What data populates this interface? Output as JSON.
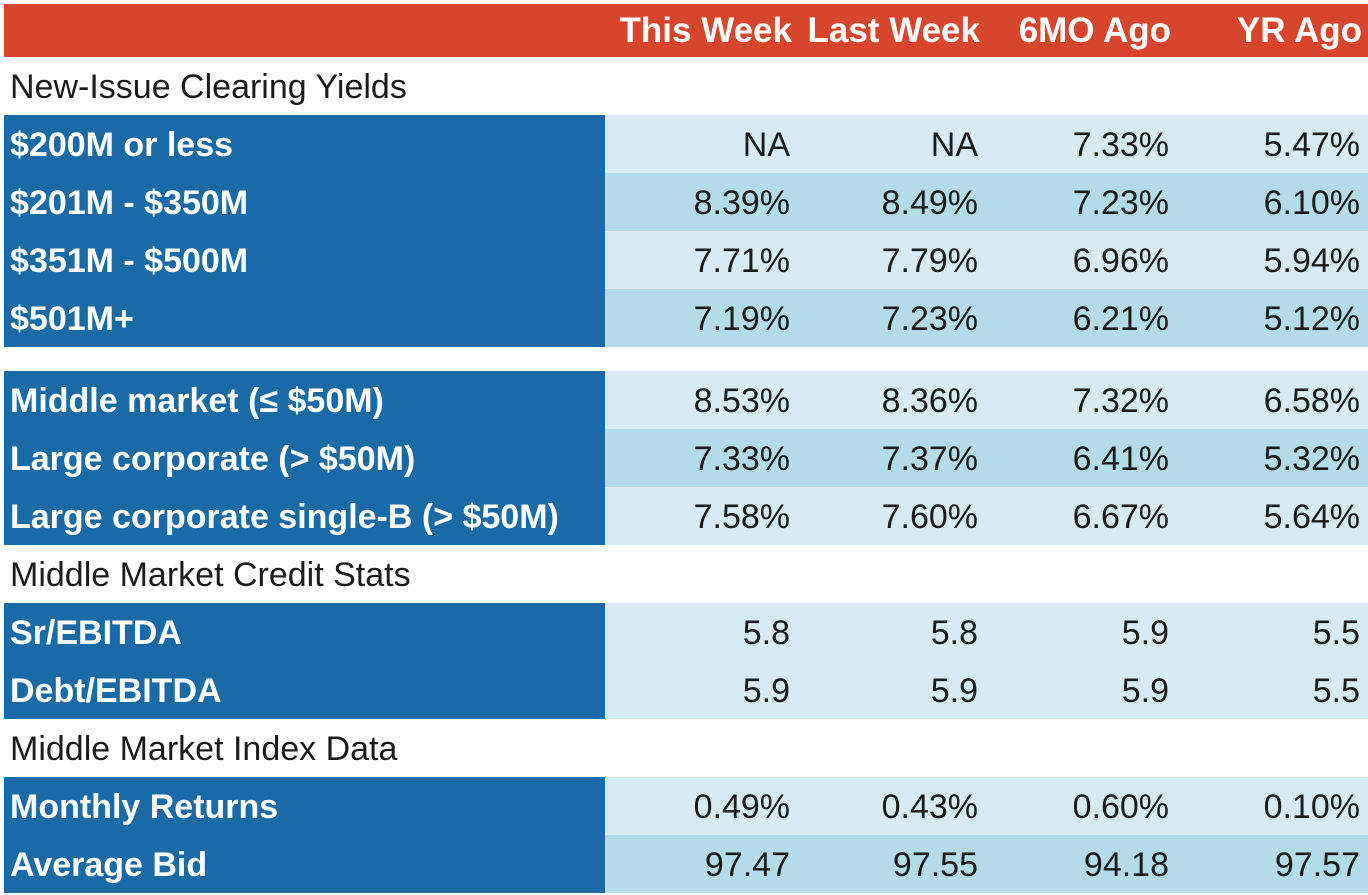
{
  "chart_data": {
    "type": "table",
    "columns": [
      "This Week",
      "Last Week",
      "6MO Ago",
      "YR Ago"
    ],
    "sections": [
      {
        "title": "New-Issue Clearing Yields",
        "rows": [
          {
            "label": "$200M or less",
            "values": [
              "NA",
              "NA",
              "7.33%",
              "5.47%"
            ]
          },
          {
            "label": "$201M - $350M",
            "values": [
              "8.39%",
              "8.49%",
              "7.23%",
              "6.10%"
            ]
          },
          {
            "label": "$351M - $500M",
            "values": [
              "7.71%",
              "7.79%",
              "6.96%",
              "5.94%"
            ]
          },
          {
            "label": "$501M+",
            "values": [
              "7.19%",
              "7.23%",
              "6.21%",
              "5.12%"
            ]
          }
        ]
      },
      {
        "title": "",
        "rows": [
          {
            "label": "Middle market (≤ $50M)",
            "values": [
              "8.53%",
              "8.36%",
              "7.32%",
              "6.58%"
            ]
          },
          {
            "label": "Large corporate (> $50M)",
            "values": [
              "7.33%",
              "7.37%",
              "6.41%",
              "5.32%"
            ]
          },
          {
            "label": "Large corporate single-B (> $50M)",
            "values": [
              "7.58%",
              "7.60%",
              "6.67%",
              "5.64%"
            ]
          }
        ]
      },
      {
        "title": "Middle Market Credit Stats",
        "rows": [
          {
            "label": "Sr/EBITDA",
            "values": [
              "5.8",
              "5.8",
              "5.9",
              "5.5"
            ]
          },
          {
            "label": "Debt/EBITDA",
            "values": [
              "5.9",
              "5.9",
              "5.9",
              "5.5"
            ]
          }
        ]
      },
      {
        "title": "Middle Market Index Data",
        "rows": [
          {
            "label": "Monthly Returns",
            "values": [
              "0.49%",
              "0.43%",
              "0.60%",
              "0.10%"
            ]
          },
          {
            "label": "Average Bid",
            "values": [
              "97.47",
              "97.55",
              "94.18",
              "97.57"
            ]
          }
        ]
      }
    ]
  },
  "colors": {
    "header_bg": "#d6452c",
    "label_bg": "#1a6aa6",
    "row_light": "#d8ebf3",
    "row_dark": "#b3dbe8"
  }
}
